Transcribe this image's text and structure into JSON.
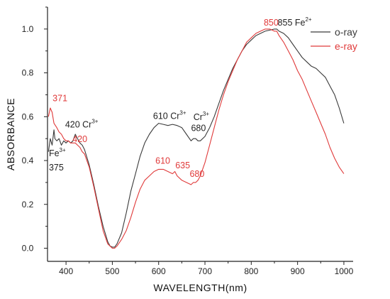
{
  "chart_data": {
    "type": "line",
    "title": "",
    "xlabel": "WAVELENGTH(nm)",
    "ylabel": "ABSORBANCE",
    "xlim": [
      360,
      1020
    ],
    "ylim": [
      -0.06,
      1.1
    ],
    "xticks": [
      400,
      500,
      600,
      700,
      800,
      900,
      1000
    ],
    "xtick_labels": [
      "400",
      "500",
      "600",
      "700",
      "800",
      "900",
      "1000"
    ],
    "yticks": [
      0.0,
      0.2,
      0.4,
      0.6,
      0.8,
      1.0
    ],
    "ytick_labels": [
      "0.0",
      "0.2",
      "0.4",
      "0.6",
      "0.8",
      "1.0"
    ],
    "grid": false,
    "legend_position": "top-right",
    "series": [
      {
        "name": "o-ray",
        "color": "#3a3a3a",
        "x": [
          362,
          366,
          370,
          374,
          376,
          380,
          385,
          390,
          395,
          400,
          405,
          410,
          415,
          420,
          425,
          430,
          435,
          440,
          450,
          460,
          470,
          480,
          490,
          495,
          500,
          505,
          510,
          520,
          530,
          540,
          550,
          560,
          570,
          580,
          590,
          600,
          610,
          620,
          630,
          640,
          650,
          660,
          670,
          675,
          680,
          685,
          690,
          700,
          710,
          720,
          730,
          740,
          750,
          760,
          770,
          780,
          790,
          800,
          810,
          820,
          830,
          840,
          850,
          855,
          860,
          870,
          880,
          890,
          900,
          910,
          920,
          930,
          940,
          950,
          960,
          970,
          980,
          990,
          1000
        ],
        "y": [
          0.44,
          0.5,
          0.47,
          0.54,
          0.5,
          0.49,
          0.5,
          0.47,
          0.49,
          0.48,
          0.49,
          0.48,
          0.49,
          0.52,
          0.5,
          0.48,
          0.47,
          0.45,
          0.38,
          0.29,
          0.19,
          0.1,
          0.03,
          0.01,
          0.005,
          0.005,
          0.02,
          0.07,
          0.16,
          0.26,
          0.34,
          0.42,
          0.48,
          0.52,
          0.55,
          0.57,
          0.565,
          0.56,
          0.565,
          0.56,
          0.55,
          0.52,
          0.49,
          0.5,
          0.5,
          0.49,
          0.49,
          0.51,
          0.55,
          0.6,
          0.66,
          0.72,
          0.77,
          0.82,
          0.86,
          0.9,
          0.93,
          0.95,
          0.97,
          0.98,
          0.99,
          0.995,
          1.0,
          1.0,
          0.99,
          0.98,
          0.96,
          0.93,
          0.9,
          0.87,
          0.85,
          0.83,
          0.82,
          0.8,
          0.78,
          0.74,
          0.7,
          0.64,
          0.57
        ]
      },
      {
        "name": "e-ray",
        "color": "#e03a3a",
        "x": [
          362,
          366,
          370,
          374,
          380,
          385,
          390,
          395,
          400,
          405,
          410,
          415,
          420,
          425,
          430,
          435,
          440,
          450,
          460,
          470,
          480,
          490,
          500,
          505,
          510,
          520,
          530,
          540,
          550,
          560,
          570,
          580,
          590,
          600,
          610,
          620,
          630,
          635,
          640,
          650,
          660,
          670,
          675,
          680,
          685,
          690,
          700,
          710,
          720,
          730,
          740,
          750,
          760,
          770,
          780,
          790,
          800,
          810,
          820,
          830,
          840,
          850,
          855,
          860,
          870,
          880,
          890,
          900,
          910,
          920,
          930,
          940,
          950,
          960,
          970,
          980,
          990,
          1000
        ],
        "y": [
          0.6,
          0.64,
          0.62,
          0.57,
          0.55,
          0.53,
          0.52,
          0.5,
          0.49,
          0.49,
          0.48,
          0.48,
          0.48,
          0.47,
          0.46,
          0.44,
          0.43,
          0.37,
          0.28,
          0.18,
          0.08,
          0.02,
          0.0,
          0.0,
          0.01,
          0.04,
          0.08,
          0.14,
          0.21,
          0.27,
          0.31,
          0.33,
          0.35,
          0.36,
          0.36,
          0.35,
          0.34,
          0.35,
          0.33,
          0.31,
          0.3,
          0.29,
          0.3,
          0.3,
          0.31,
          0.33,
          0.39,
          0.47,
          0.55,
          0.63,
          0.7,
          0.76,
          0.81,
          0.86,
          0.9,
          0.94,
          0.96,
          0.98,
          0.99,
          1.0,
          1.0,
          0.99,
          0.99,
          0.97,
          0.94,
          0.9,
          0.86,
          0.81,
          0.77,
          0.72,
          0.67,
          0.62,
          0.57,
          0.52,
          0.46,
          0.41,
          0.37,
          0.34
        ]
      }
    ],
    "annotations": [
      {
        "text": "371",
        "x": 371,
        "y": 0.67,
        "color": "#e03a3a",
        "sup": ""
      },
      {
        "text": "420 Cr",
        "x": 398,
        "y": 0.55,
        "color": "#222222",
        "sup": "3+"
      },
      {
        "text": "420",
        "x": 414,
        "y": 0.485,
        "color": "#e03a3a",
        "sup": ""
      },
      {
        "text": "Fe",
        "x": 363,
        "y": 0.42,
        "color": "#222222",
        "sup": "3+"
      },
      {
        "text": "375",
        "x": 363,
        "y": 0.355,
        "color": "#222222",
        "sup": ""
      },
      {
        "text": "610 Cr",
        "x": 588,
        "y": 0.59,
        "color": "#222222",
        "sup": "3+"
      },
      {
        "text": "Cr",
        "x": 675,
        "y": 0.585,
        "color": "#222222",
        "sup": "3+"
      },
      {
        "text": "680",
        "x": 670,
        "y": 0.535,
        "color": "#222222",
        "sup": ""
      },
      {
        "text": "610",
        "x": 593,
        "y": 0.385,
        "color": "#e03a3a",
        "sup": ""
      },
      {
        "text": "635",
        "x": 636,
        "y": 0.365,
        "color": "#e03a3a",
        "sup": ""
      },
      {
        "text": "680",
        "x": 667,
        "y": 0.325,
        "color": "#e03a3a",
        "sup": ""
      },
      {
        "text": "850",
        "x": 827,
        "y": 1.015,
        "color": "#e03a3a",
        "sup": ""
      },
      {
        "text": "855 Fe",
        "x": 857,
        "y": 1.015,
        "color": "#222222",
        "sup": "2+"
      }
    ]
  }
}
